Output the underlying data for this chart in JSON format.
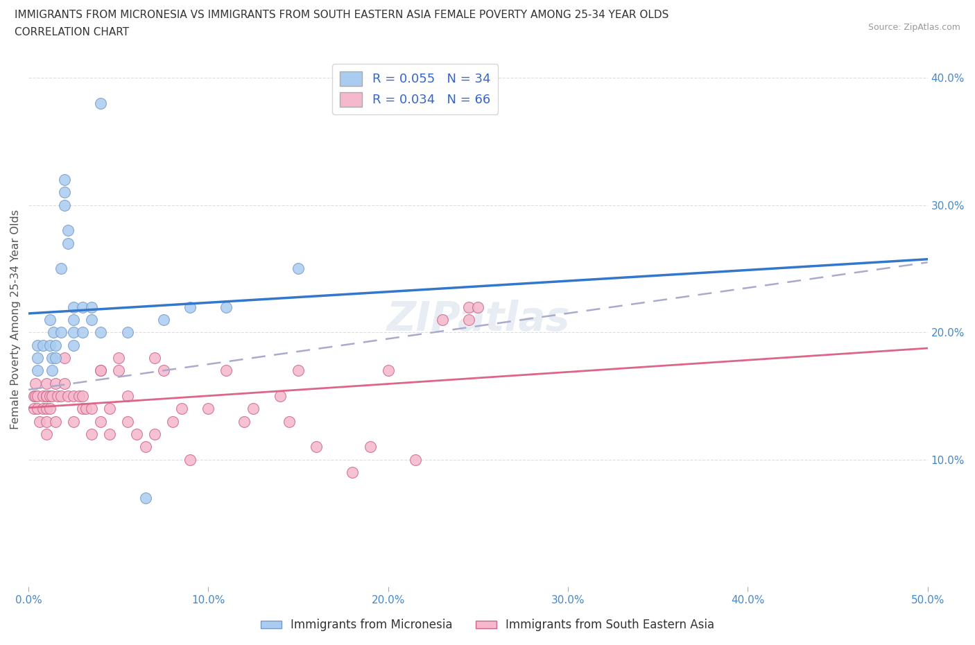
{
  "title_line1": "IMMIGRANTS FROM MICRONESIA VS IMMIGRANTS FROM SOUTH EASTERN ASIA FEMALE POVERTY AMONG 25-34 YEAR OLDS",
  "title_line2": "CORRELATION CHART",
  "source_text": "Source: ZipAtlas.com",
  "ylabel": "Female Poverty Among 25-34 Year Olds",
  "xlim": [
    0.0,
    0.5
  ],
  "ylim": [
    0.0,
    0.42
  ],
  "xticks": [
    0.0,
    0.1,
    0.2,
    0.3,
    0.4,
    0.5
  ],
  "xticklabels": [
    "0.0%",
    "10.0%",
    "20.0%",
    "30.0%",
    "40.0%",
    "50.0%"
  ],
  "right_yticks": [
    0.1,
    0.2,
    0.3,
    0.4
  ],
  "right_yticklabels": [
    "10.0%",
    "20.0%",
    "30.0%",
    "40.0%"
  ],
  "legend_entries": [
    {
      "label": "R = 0.055   N = 34",
      "color": "#aaccf0"
    },
    {
      "label": "R = 0.034   N = 66",
      "color": "#f5b8cc"
    }
  ],
  "micronesia_color": "#aaccf0",
  "micronesia_edge": "#7799cc",
  "sea_color": "#f5b8cc",
  "sea_edge": "#cc6688",
  "micronesia_line_color": "#3377cc",
  "sea_line_color": "#dd6688",
  "dashed_line_color": "#aaaacc",
  "watermark": "ZIPatlas",
  "background_color": "#ffffff",
  "grid_color": "#dddddd",
  "micronesia_x": [
    0.005,
    0.005,
    0.005,
    0.008,
    0.012,
    0.012,
    0.013,
    0.013,
    0.014,
    0.015,
    0.015,
    0.018,
    0.018,
    0.02,
    0.02,
    0.02,
    0.022,
    0.022,
    0.025,
    0.025,
    0.025,
    0.025,
    0.03,
    0.03,
    0.035,
    0.035,
    0.04,
    0.04,
    0.055,
    0.065,
    0.075,
    0.09,
    0.11,
    0.15
  ],
  "micronesia_y": [
    0.18,
    0.19,
    0.17,
    0.19,
    0.21,
    0.19,
    0.18,
    0.17,
    0.2,
    0.19,
    0.18,
    0.25,
    0.2,
    0.32,
    0.31,
    0.3,
    0.28,
    0.27,
    0.22,
    0.21,
    0.2,
    0.19,
    0.22,
    0.2,
    0.22,
    0.21,
    0.2,
    0.38,
    0.2,
    0.07,
    0.21,
    0.22,
    0.22,
    0.25
  ],
  "sea_x": [
    0.003,
    0.003,
    0.004,
    0.004,
    0.005,
    0.005,
    0.006,
    0.008,
    0.008,
    0.01,
    0.01,
    0.01,
    0.01,
    0.01,
    0.01,
    0.012,
    0.012,
    0.013,
    0.015,
    0.015,
    0.016,
    0.018,
    0.02,
    0.02,
    0.022,
    0.025,
    0.025,
    0.028,
    0.03,
    0.03,
    0.032,
    0.035,
    0.035,
    0.04,
    0.04,
    0.04,
    0.045,
    0.045,
    0.05,
    0.05,
    0.055,
    0.055,
    0.06,
    0.065,
    0.07,
    0.07,
    0.075,
    0.08,
    0.085,
    0.09,
    0.1,
    0.11,
    0.12,
    0.125,
    0.14,
    0.145,
    0.15,
    0.16,
    0.18,
    0.19,
    0.2,
    0.215,
    0.23,
    0.245,
    0.245,
    0.25
  ],
  "sea_y": [
    0.15,
    0.14,
    0.16,
    0.15,
    0.14,
    0.15,
    0.13,
    0.15,
    0.14,
    0.16,
    0.15,
    0.15,
    0.14,
    0.13,
    0.12,
    0.15,
    0.14,
    0.15,
    0.16,
    0.13,
    0.15,
    0.15,
    0.18,
    0.16,
    0.15,
    0.15,
    0.13,
    0.15,
    0.15,
    0.14,
    0.14,
    0.14,
    0.12,
    0.17,
    0.17,
    0.13,
    0.12,
    0.14,
    0.18,
    0.17,
    0.15,
    0.13,
    0.12,
    0.11,
    0.18,
    0.12,
    0.17,
    0.13,
    0.14,
    0.1,
    0.14,
    0.17,
    0.13,
    0.14,
    0.15,
    0.13,
    0.17,
    0.11,
    0.09,
    0.11,
    0.17,
    0.1,
    0.21,
    0.22,
    0.21,
    0.22
  ]
}
